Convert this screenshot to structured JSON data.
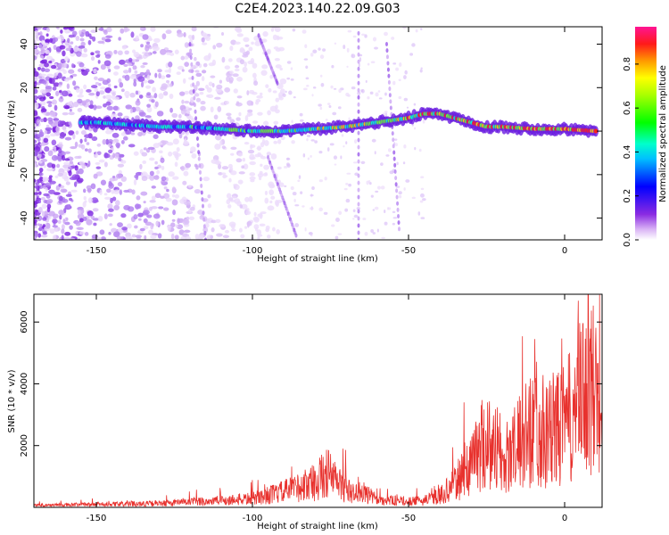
{
  "title": "C2E4.2023.140.22.09.G03",
  "colors": {
    "line": "#e8322e",
    "frame": "#000000"
  },
  "chart_data": [
    {
      "type": "heatmap",
      "xlabel": "Height of straight line (km)",
      "ylabel": "Frequency (Hz)",
      "xlim": [
        -170,
        12
      ],
      "ylim": [
        -50,
        48
      ],
      "xticks": [
        -150,
        -100,
        -50,
        0
      ],
      "yticks": [
        -40,
        -20,
        0,
        20,
        40
      ],
      "colorbar": {
        "label": "Normalized spectral amplitude",
        "range": [
          0,
          0.97
        ],
        "ticks": [
          0.0,
          0.2,
          0.4,
          0.6,
          0.8
        ],
        "colormap": "rainbow-violet-to-magenta"
      },
      "ridge": {
        "x": [
          -150,
          -140,
          -130,
          -120,
          -110,
          -100,
          -90,
          -80,
          -70,
          -60,
          -50,
          -45,
          -40,
          -35,
          -30,
          -25,
          -20,
          -10,
          0,
          10
        ],
        "y": [
          4,
          3,
          2,
          2,
          1,
          0,
          0,
          1,
          2,
          4,
          6,
          8,
          8,
          6,
          4,
          2,
          2,
          1,
          1,
          0
        ]
      }
    },
    {
      "type": "line",
      "xlabel": "Height of straight line (km)",
      "ylabel": "SNR (10 * v/v)",
      "xlim": [
        -170,
        12
      ],
      "ylim": [
        0,
        6900
      ],
      "xticks": [
        -150,
        -100,
        -50,
        0
      ],
      "yticks": [
        2000,
        4000,
        6000
      ],
      "envelope": {
        "x": [
          -170,
          -150,
          -130,
          -120,
          -110,
          -100,
          -90,
          -80,
          -76,
          -72,
          -68,
          -65,
          -60,
          -50,
          -45,
          -40,
          -35,
          -30,
          -25,
          -22,
          -20,
          -15,
          -10,
          -5,
          0,
          5,
          10,
          12
        ],
        "y": [
          100,
          150,
          200,
          280,
          350,
          450,
          800,
          1300,
          1800,
          1200,
          700,
          800,
          400,
          300,
          350,
          600,
          1200,
          2400,
          3600,
          3000,
          2200,
          3200,
          4200,
          3900,
          4200,
          5500,
          6200,
          6000
        ]
      }
    }
  ]
}
